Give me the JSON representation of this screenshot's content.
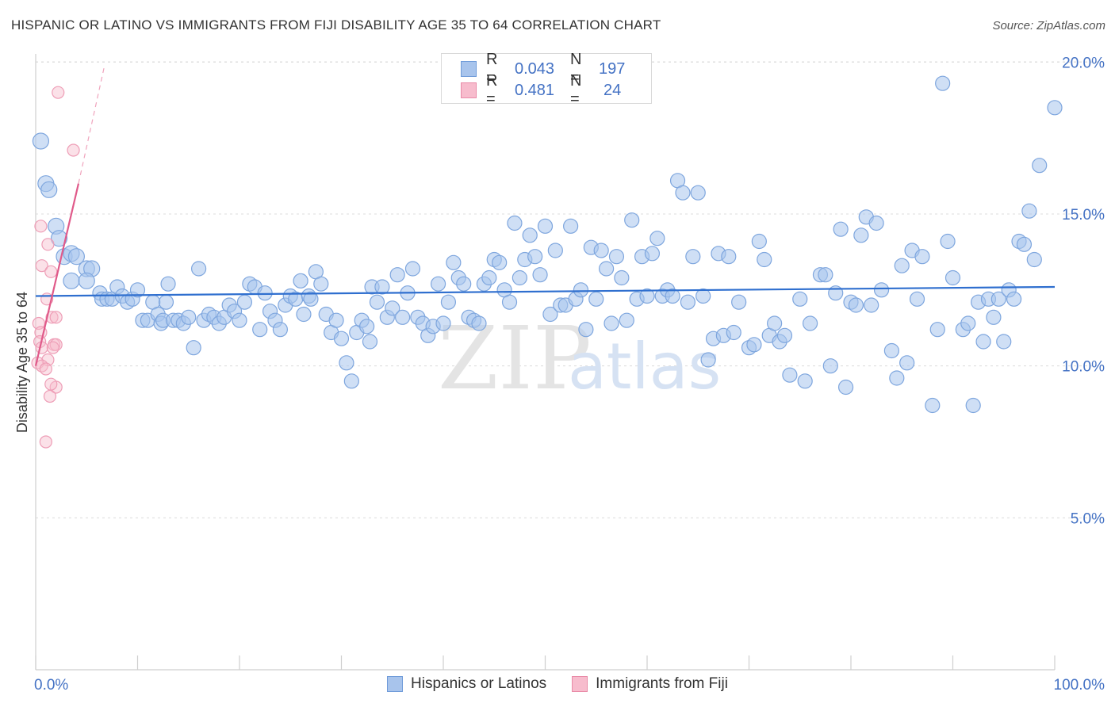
{
  "title": "HISPANIC OR LATINO VS IMMIGRANTS FROM FIJI DISABILITY AGE 35 TO 64 CORRELATION CHART",
  "source": "Source: ZipAtlas.com",
  "watermark": {
    "zip": "ZIP",
    "atlas": "atlas"
  },
  "legend": {
    "r_label": "R =",
    "n_label": "N =",
    "series1": {
      "r": "0.043",
      "n": "197",
      "color": "#a8c4ec",
      "border": "#6f9bd9"
    },
    "series2": {
      "r": "0.481",
      "n": "24",
      "color": "#f7bccd",
      "border": "#e98aa7"
    }
  },
  "bottom_legend": [
    "Hispanics or Latinos",
    "Immigrants from Fiji"
  ],
  "chart_data": {
    "type": "scatter",
    "title": "HISPANIC OR LATINO VS IMMIGRANTS FROM FIJI DISABILITY AGE 35 TO 64 CORRELATION CHART",
    "xlabel": "",
    "ylabel": "Disability Age 35 to 64",
    "xlim": [
      0,
      100
    ],
    "ylim": [
      0,
      21
    ],
    "x_tick_labels": [
      "0.0%",
      "100.0%"
    ],
    "y_ticks": [
      5,
      10,
      15,
      20
    ],
    "y_tick_labels": [
      "5.0%",
      "10.0%",
      "15.0%",
      "20.0%"
    ],
    "series": [
      {
        "name": "Hispanics or Latinos",
        "color": "#a8c4ec",
        "trend": {
          "x0": 0,
          "y0": 12.3,
          "x1": 100,
          "y1": 12.6,
          "color": "#2f6fcf"
        },
        "points": [
          [
            0.5,
            17.4
          ],
          [
            1,
            16.0
          ],
          [
            1.3,
            15.8
          ],
          [
            2,
            14.6
          ],
          [
            2.3,
            14.2
          ],
          [
            2.8,
            13.6
          ],
          [
            3.5,
            13.7
          ],
          [
            4,
            13.6
          ],
          [
            5,
            13.2
          ],
          [
            5.5,
            13.2
          ],
          [
            3.5,
            12.8
          ],
          [
            5,
            12.8
          ],
          [
            6.3,
            12.4
          ],
          [
            6.5,
            12.2
          ],
          [
            7,
            12.2
          ],
          [
            7.5,
            12.2
          ],
          [
            8,
            12.6
          ],
          [
            8.5,
            12.3
          ],
          [
            9,
            12.1
          ],
          [
            9.5,
            12.2
          ],
          [
            10,
            12.5
          ],
          [
            10.5,
            11.5
          ],
          [
            11,
            11.5
          ],
          [
            11.5,
            12.1
          ],
          [
            12,
            11.7
          ],
          [
            12.3,
            11.4
          ],
          [
            12.5,
            11.5
          ],
          [
            12.8,
            12.1
          ],
          [
            13,
            12.7
          ],
          [
            13.5,
            11.5
          ],
          [
            14,
            11.5
          ],
          [
            14.5,
            11.4
          ],
          [
            15,
            11.6
          ],
          [
            15.5,
            10.6
          ],
          [
            16,
            13.2
          ],
          [
            16.5,
            11.5
          ],
          [
            17,
            11.7
          ],
          [
            17.5,
            11.6
          ],
          [
            18,
            11.4
          ],
          [
            18.5,
            11.6
          ],
          [
            19,
            12.0
          ],
          [
            19.5,
            11.8
          ],
          [
            20,
            11.5
          ],
          [
            20.5,
            12.1
          ],
          [
            21,
            12.7
          ],
          [
            21.5,
            12.6
          ],
          [
            22,
            11.2
          ],
          [
            22.5,
            12.4
          ],
          [
            23,
            11.8
          ],
          [
            23.5,
            11.5
          ],
          [
            24,
            11.2
          ],
          [
            24.5,
            12.0
          ],
          [
            25,
            12.3
          ],
          [
            25.5,
            12.2
          ],
          [
            26,
            12.8
          ],
          [
            26.3,
            11.7
          ],
          [
            26.8,
            12.3
          ],
          [
            27,
            12.2
          ],
          [
            27.5,
            13.1
          ],
          [
            28,
            12.7
          ],
          [
            28.5,
            11.7
          ],
          [
            29,
            11.1
          ],
          [
            29.5,
            11.5
          ],
          [
            30,
            10.9
          ],
          [
            30.5,
            10.1
          ],
          [
            31,
            9.5
          ],
          [
            31.5,
            11.1
          ],
          [
            32,
            11.5
          ],
          [
            32.5,
            11.3
          ],
          [
            32.8,
            10.8
          ],
          [
            33,
            12.6
          ],
          [
            33.5,
            12.1
          ],
          [
            34,
            12.6
          ],
          [
            34.5,
            11.6
          ],
          [
            35,
            11.9
          ],
          [
            35.5,
            13.0
          ],
          [
            36,
            11.6
          ],
          [
            36.5,
            12.4
          ],
          [
            37,
            13.2
          ],
          [
            37.5,
            11.6
          ],
          [
            38,
            11.4
          ],
          [
            38.5,
            11.0
          ],
          [
            39,
            11.3
          ],
          [
            39.5,
            12.7
          ],
          [
            40,
            11.4
          ],
          [
            40.5,
            12.1
          ],
          [
            41,
            13.4
          ],
          [
            41.5,
            12.9
          ],
          [
            42,
            12.7
          ],
          [
            42.5,
            11.6
          ],
          [
            43,
            11.5
          ],
          [
            43.5,
            11.4
          ],
          [
            44,
            12.7
          ],
          [
            44.5,
            12.9
          ],
          [
            45,
            13.5
          ],
          [
            45.5,
            13.4
          ],
          [
            46,
            12.5
          ],
          [
            46.5,
            12.1
          ],
          [
            47,
            14.7
          ],
          [
            47.5,
            12.9
          ],
          [
            48,
            13.5
          ],
          [
            48.5,
            14.3
          ],
          [
            49,
            13.6
          ],
          [
            49.5,
            13.0
          ],
          [
            50,
            14.6
          ],
          [
            50.5,
            11.7
          ],
          [
            51,
            13.8
          ],
          [
            51.5,
            12.0
          ],
          [
            52,
            12.0
          ],
          [
            52.5,
            14.6
          ],
          [
            53,
            12.2
          ],
          [
            53.5,
            12.5
          ],
          [
            54,
            11.2
          ],
          [
            54.5,
            13.9
          ],
          [
            55,
            12.2
          ],
          [
            55.5,
            13.8
          ],
          [
            56,
            13.2
          ],
          [
            56.5,
            11.4
          ],
          [
            57,
            13.6
          ],
          [
            57.5,
            12.9
          ],
          [
            58,
            11.5
          ],
          [
            58.5,
            14.8
          ],
          [
            59,
            12.2
          ],
          [
            59.5,
            13.6
          ],
          [
            60,
            12.3
          ],
          [
            60.5,
            13.7
          ],
          [
            61,
            14.2
          ],
          [
            61.5,
            12.3
          ],
          [
            62,
            12.5
          ],
          [
            62.5,
            12.3
          ],
          [
            63,
            16.1
          ],
          [
            63.5,
            15.7
          ],
          [
            64,
            12.1
          ],
          [
            64.5,
            13.6
          ],
          [
            65,
            15.7
          ],
          [
            65.5,
            12.3
          ],
          [
            66,
            10.2
          ],
          [
            66.5,
            10.9
          ],
          [
            67,
            13.7
          ],
          [
            67.5,
            11.0
          ],
          [
            68,
            13.6
          ],
          [
            68.5,
            11.1
          ],
          [
            69,
            12.1
          ],
          [
            70,
            10.6
          ],
          [
            70.5,
            10.7
          ],
          [
            71,
            14.1
          ],
          [
            71.5,
            13.5
          ],
          [
            72,
            11.0
          ],
          [
            72.5,
            11.4
          ],
          [
            73,
            10.8
          ],
          [
            73.5,
            11.0
          ],
          [
            74,
            9.7
          ],
          [
            75,
            12.2
          ],
          [
            75.5,
            9.5
          ],
          [
            76,
            11.4
          ],
          [
            77,
            13.0
          ],
          [
            77.5,
            13.0
          ],
          [
            78,
            10.0
          ],
          [
            78.5,
            12.4
          ],
          [
            79,
            14.5
          ],
          [
            79.5,
            9.3
          ],
          [
            80,
            12.1
          ],
          [
            80.5,
            12.0
          ],
          [
            81,
            14.3
          ],
          [
            81.5,
            14.9
          ],
          [
            82,
            12.0
          ],
          [
            82.5,
            14.7
          ],
          [
            83,
            12.5
          ],
          [
            84,
            10.5
          ],
          [
            84.5,
            9.6
          ],
          [
            85,
            13.3
          ],
          [
            85.5,
            10.1
          ],
          [
            86,
            13.8
          ],
          [
            86.5,
            12.2
          ],
          [
            87,
            13.6
          ],
          [
            88,
            8.7
          ],
          [
            88.5,
            11.2
          ],
          [
            89,
            19.3
          ],
          [
            89.5,
            14.1
          ],
          [
            90,
            12.9
          ],
          [
            91,
            11.2
          ],
          [
            91.5,
            11.4
          ],
          [
            92,
            8.7
          ],
          [
            92.5,
            12.1
          ],
          [
            93,
            10.8
          ],
          [
            93.5,
            12.2
          ],
          [
            94,
            11.6
          ],
          [
            94.5,
            12.2
          ],
          [
            95,
            10.8
          ],
          [
            95.5,
            12.5
          ],
          [
            96,
            12.2
          ],
          [
            96.5,
            14.1
          ],
          [
            97,
            14.0
          ],
          [
            97.5,
            15.1
          ],
          [
            98,
            13.5
          ],
          [
            98.5,
            16.6
          ],
          [
            100,
            18.5
          ]
        ]
      },
      {
        "name": "Immigrants from Fiji",
        "color": "#f7bccd",
        "trend": {
          "x0": 0,
          "y0": 10.0,
          "x1": 4.2,
          "y1": 16.0,
          "color": "#e05a8a"
        },
        "trend_extension": {
          "x0": 4.2,
          "y0": 16.0,
          "x1": 6.7,
          "y1": 19.8
        },
        "points": [
          [
            2.2,
            19.0
          ],
          [
            3.7,
            17.1
          ],
          [
            0.5,
            14.6
          ],
          [
            1.2,
            14.0
          ],
          [
            0.6,
            13.3
          ],
          [
            1.5,
            13.1
          ],
          [
            1.1,
            12.2
          ],
          [
            1.6,
            11.6
          ],
          [
            2.0,
            11.6
          ],
          [
            0.3,
            11.4
          ],
          [
            0.5,
            11.1
          ],
          [
            0.4,
            10.8
          ],
          [
            1.8,
            10.7
          ],
          [
            0.6,
            10.6
          ],
          [
            2.0,
            10.7
          ],
          [
            1.7,
            10.6
          ],
          [
            1.2,
            10.2
          ],
          [
            0.2,
            10.1
          ],
          [
            0.6,
            10.0
          ],
          [
            1.0,
            9.9
          ],
          [
            2.0,
            9.3
          ],
          [
            1.5,
            9.4
          ],
          [
            1.4,
            9.0
          ],
          [
            1.0,
            7.5
          ]
        ]
      }
    ]
  }
}
